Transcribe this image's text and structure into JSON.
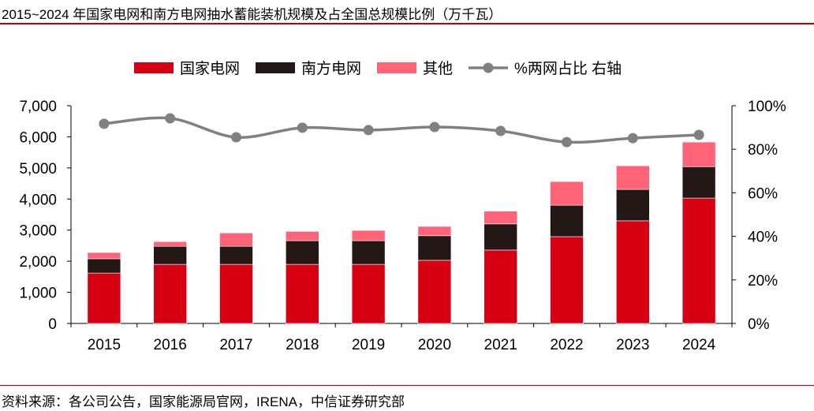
{
  "title": "2015~2024 年国家电网和南方电网抽水蓄能装机规模及占全国总规模比例（万千瓦）",
  "source": "资料来源：各公司公告，国家能源局官网，IRENA，中信证券研究部",
  "chart_data": {
    "type": "bar",
    "stacked": true,
    "categories": [
      "2015",
      "2016",
      "2017",
      "2018",
      "2019",
      "2020",
      "2021",
      "2022",
      "2023",
      "2024"
    ],
    "series": [
      {
        "name": "国家电网",
        "color": "#d60012",
        "values": [
          1620,
          1900,
          1900,
          1900,
          1900,
          2030,
          2360,
          2790,
          3300,
          4030
        ]
      },
      {
        "name": "南方电网",
        "color": "#231815",
        "values": [
          460,
          580,
          580,
          760,
          760,
          790,
          840,
          1010,
          1010,
          1010
        ]
      },
      {
        "name": "其他",
        "color": "#ff6377",
        "values": [
          200,
          150,
          430,
          300,
          330,
          300,
          410,
          760,
          760,
          790
        ]
      },
      {
        "name": "%两网占比 右轴",
        "type": "line",
        "axis": "right",
        "color": "#808080",
        "values": [
          91.7,
          94.2,
          85.5,
          89.9,
          88.8,
          90.2,
          88.4,
          83.3,
          85.1,
          86.6
        ]
      }
    ],
    "yleft": {
      "ylim": [
        0,
        7000
      ],
      "ticks": [
        "0",
        "1,000",
        "2,000",
        "3,000",
        "4,000",
        "5,000",
        "6,000",
        "7,000"
      ]
    },
    "yright": {
      "ylim": [
        0,
        100
      ],
      "ticks": [
        "0%",
        "20%",
        "40%",
        "60%",
        "80%",
        "100%"
      ]
    },
    "legend": "top",
    "grid": false
  }
}
